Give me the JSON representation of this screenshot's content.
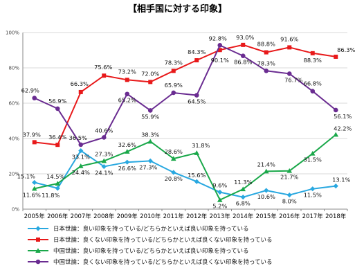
{
  "chart_data": {
    "type": "line",
    "title": "【相手国に対する印象】",
    "xlabel": "",
    "ylabel": "",
    "ylim": [
      0,
      100
    ],
    "yticks": [
      "0%",
      "20%",
      "40%",
      "60%",
      "80%",
      "100%"
    ],
    "ytick_values": [
      0,
      20,
      40,
      60,
      80,
      100
    ],
    "grid": true,
    "legend_position": "bottom",
    "categories": [
      "2005年",
      "2006年",
      "2007年",
      "2008年",
      "2009年",
      "2010年",
      "2011年",
      "2012年",
      "2013年",
      "2014年",
      "2015年",
      "2016年",
      "2017年",
      "2018年"
    ],
    "series": [
      {
        "name": "日本世論：良い印象を持っている/どちらかといえば良い印象を持っている",
        "color": "#29a8e0",
        "marker": "diamond",
        "values": [
          15.1,
          11.8,
          33.1,
          24.1,
          26.6,
          27.3,
          20.8,
          15.6,
          9.6,
          6.8,
          10.6,
          8.0,
          11.5,
          13.1
        ],
        "labels": [
          "15.1%",
          "11.8%",
          "33.1%",
          "24.1%",
          "26.6%",
          "27.3%",
          "20.8%",
          "15.6%",
          "9.6%",
          "6.8%",
          "10.6%",
          "8.0%",
          "11.5%",
          "13.1%"
        ]
      },
      {
        "name": "日本世論：良くない印象を持っている/どちらかといえば良くない印象を持っている",
        "color": "#e8191a",
        "marker": "square",
        "values": [
          37.9,
          36.4,
          66.3,
          75.6,
          73.2,
          72.0,
          78.3,
          84.3,
          90.1,
          93.0,
          88.8,
          91.6,
          88.3,
          86.3
        ],
        "labels": [
          "37.9%",
          "36.4%",
          "66.3%",
          "75.6%",
          "73.2%",
          "72.0%",
          "78.3%",
          "84.3%",
          "90.1%",
          "93.0%",
          "88.8%",
          "91.6%",
          "88.3%",
          "86.3%"
        ]
      },
      {
        "name": "中国世論：良い印象を持っている/どちらかといえば良い印象を持っている",
        "color": "#1aa84a",
        "marker": "triangle",
        "values": [
          11.6,
          14.5,
          24.4,
          27.3,
          32.6,
          38.3,
          28.6,
          31.8,
          5.2,
          11.3,
          21.4,
          21.7,
          31.5,
          42.2
        ],
        "labels": [
          "11.6%",
          "14.5%",
          "24.4%",
          "27.3%",
          "32.6%",
          "38.3%",
          "28.6%",
          "31.8%",
          "5.2%",
          "11.3%",
          "21.4%",
          "21.7%",
          "31.5%",
          "42.2%"
        ]
      },
      {
        "name": "中国世論：良くない印象を持っている/どちらかといえば良くない印象を持っている",
        "color": "#6a2c91",
        "marker": "circle",
        "values": [
          62.9,
          56.9,
          36.5,
          40.6,
          65.2,
          55.9,
          65.9,
          64.5,
          92.8,
          86.8,
          78.3,
          76.7,
          66.8,
          56.1
        ],
        "labels": [
          "62.9%",
          "56.9%",
          "36.5%",
          "40.6%",
          "65.2%",
          "55.9%",
          "65.9%",
          "64.5%",
          "92.8%",
          "86.8%",
          "78.3%",
          "76.7%",
          "66.8%",
          "56.1%"
        ]
      }
    ]
  }
}
